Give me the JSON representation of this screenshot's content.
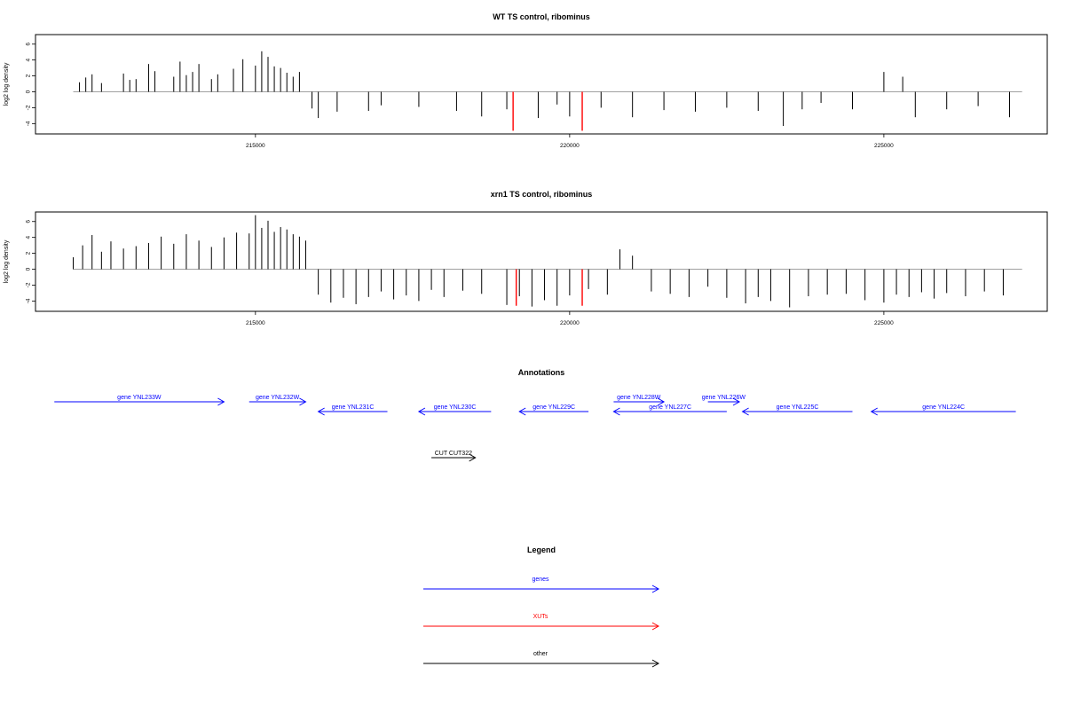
{
  "chart_data": [
    {
      "type": "bar",
      "title": "WT TS control, ribominus",
      "xlabel": "",
      "ylabel": "log2 log density",
      "xlim": [
        211500,
        227600
      ],
      "ylim": [
        -5.3,
        7.2
      ],
      "xticks": [
        215000,
        220000,
        225000
      ],
      "yticks": [
        -4,
        -2,
        0,
        2,
        4,
        6
      ],
      "baseline": {
        "from": 212100,
        "to": 227200
      },
      "grid": false,
      "series": [
        {
          "color": "#000000",
          "x": [
            212200,
            212300,
            212400,
            212550,
            212900,
            213000,
            213100,
            213300,
            213400,
            213700,
            213800,
            213900,
            214000,
            214100,
            214300,
            214400,
            214650,
            214800,
            215000,
            215100,
            215200,
            215300,
            215400,
            215500,
            215600,
            215700,
            215900,
            216000,
            216300,
            216800,
            217000,
            217600,
            218200,
            218600,
            219000,
            219500,
            219800,
            220000,
            220500,
            221000,
            221500,
            222000,
            222500,
            223000,
            223400,
            223700,
            224000,
            224500,
            225000,
            225300,
            225500,
            226000,
            226500,
            227000
          ],
          "values": [
            1.2,
            1.8,
            2.2,
            1.1,
            2.3,
            1.5,
            1.6,
            3.5,
            2.6,
            1.9,
            3.8,
            2.1,
            2.5,
            3.5,
            1.6,
            2.2,
            2.9,
            4.1,
            3.3,
            5.1,
            4.4,
            3.2,
            3.0,
            2.4,
            1.9,
            2.5,
            -2.1,
            -3.3,
            -2.5,
            -2.4,
            -1.7,
            -1.9,
            -2.4,
            -3.1,
            -2.2,
            -3.3,
            -1.6,
            -3.1,
            -2.0,
            -3.2,
            -2.3,
            -2.5,
            -2.0,
            -2.4,
            -4.3,
            -2.2,
            -1.4,
            -2.2,
            2.5,
            1.9,
            -3.2,
            -2.2,
            -1.8,
            -3.2
          ]
        },
        {
          "color": "#ff0000",
          "x": [
            219100,
            220200
          ],
          "values": [
            -4.9,
            -4.9
          ]
        }
      ]
    },
    {
      "type": "bar",
      "title": "xrn1 TS control, ribominus",
      "xlabel": "",
      "ylabel": "log2 log density",
      "xlim": [
        211500,
        227600
      ],
      "ylim": [
        -5.3,
        7.2
      ],
      "xticks": [
        215000,
        220000,
        225000
      ],
      "yticks": [
        -4,
        -2,
        0,
        2,
        4,
        6
      ],
      "baseline": {
        "from": 212100,
        "to": 227200
      },
      "grid": false,
      "series": [
        {
          "color": "#000000",
          "x": [
            212100,
            212250,
            212400,
            212550,
            212700,
            212900,
            213100,
            213300,
            213500,
            213700,
            213900,
            214100,
            214300,
            214500,
            214700,
            214900,
            215000,
            215100,
            215200,
            215300,
            215400,
            215500,
            215600,
            215700,
            215800,
            216000,
            216200,
            216400,
            216600,
            216800,
            217000,
            217200,
            217400,
            217600,
            217800,
            218000,
            218300,
            218600,
            219000,
            219200,
            219400,
            219600,
            219800,
            220000,
            220300,
            220600,
            220800,
            221000,
            221300,
            221600,
            221900,
            222200,
            222500,
            222800,
            223000,
            223200,
            223500,
            223800,
            224100,
            224400,
            224700,
            225000,
            225200,
            225400,
            225600,
            225800,
            226000,
            226300,
            226600,
            226900
          ],
          "values": [
            1.5,
            3.0,
            4.3,
            2.2,
            3.5,
            2.6,
            2.9,
            3.3,
            4.1,
            3.2,
            4.4,
            3.6,
            2.8,
            4.0,
            4.6,
            4.5,
            6.8,
            5.2,
            6.1,
            4.7,
            5.3,
            5.0,
            4.4,
            4.1,
            3.6,
            -3.2,
            -4.2,
            -3.6,
            -4.4,
            -3.5,
            -2.8,
            -3.8,
            -3.3,
            -4.0,
            -2.6,
            -3.5,
            -2.7,
            -3.1,
            -4.5,
            -3.4,
            -4.7,
            -3.9,
            -4.6,
            -3.3,
            -2.5,
            -3.2,
            2.5,
            1.7,
            -2.8,
            -3.1,
            -3.5,
            -2.2,
            -3.6,
            -4.3,
            -3.5,
            -4.0,
            -4.8,
            -3.4,
            -3.2,
            -3.1,
            -3.9,
            -4.2,
            -3.2,
            -3.5,
            -2.9,
            -3.7,
            -3.0,
            -3.4,
            -2.8,
            -3.3
          ]
        },
        {
          "color": "#ff0000",
          "x": [
            219150,
            220200
          ],
          "values": [
            -4.6,
            -4.6
          ]
        }
      ]
    }
  ],
  "annotations": {
    "title": "Annotations",
    "genes": [
      {
        "label": "gene YNL233W",
        "start": 211800,
        "end": 214500,
        "strand": "+"
      },
      {
        "label": "gene YNL232W",
        "start": 214900,
        "end": 215800,
        "strand": "+"
      },
      {
        "label": "gene YNL231C",
        "start": 216000,
        "end": 217100,
        "strand": "-"
      },
      {
        "label": "gene YNL230C",
        "start": 217600,
        "end": 218750,
        "strand": "-"
      },
      {
        "label": "gene YNL229C",
        "start": 219200,
        "end": 220300,
        "strand": "-"
      },
      {
        "label": "gene YNL228W",
        "start": 220700,
        "end": 221500,
        "strand": "+"
      },
      {
        "label": "gene YNL227C",
        "start": 220700,
        "end": 222500,
        "strand": "-"
      },
      {
        "label": "gene YNL226W",
        "start": 222200,
        "end": 222700,
        "strand": "+"
      },
      {
        "label": "gene YNL225C",
        "start": 222750,
        "end": 224500,
        "strand": "-"
      },
      {
        "label": "gene YNL224C",
        "start": 224800,
        "end": 227100,
        "strand": "-"
      }
    ],
    "other": [
      {
        "label": "CUT CUT322",
        "start": 217800,
        "end": 218500,
        "strand": "+"
      }
    ]
  },
  "legend": {
    "title": "Legend",
    "items": [
      {
        "label": "genes",
        "color": "#0000ff"
      },
      {
        "label": "XUTs",
        "color": "#ff0000"
      },
      {
        "label": "other",
        "color": "#000000"
      }
    ]
  }
}
